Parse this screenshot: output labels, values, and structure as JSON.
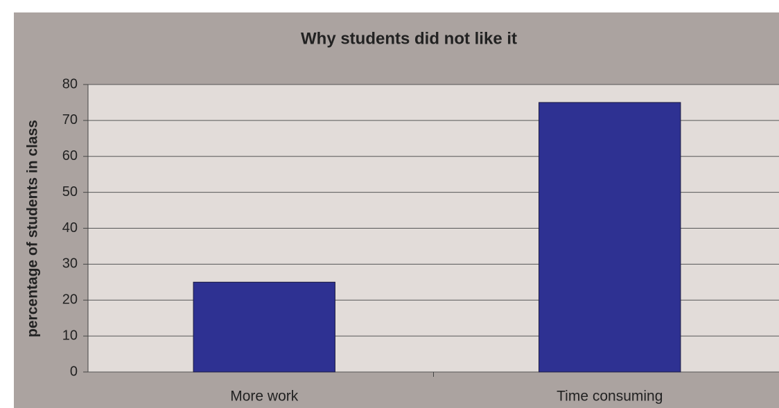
{
  "chart_data": {
    "type": "bar",
    "title": "Why students did not like it",
    "y_label": "percentage of students in class",
    "categories": [
      "More work",
      "Time consuming"
    ],
    "values": [
      25,
      75
    ],
    "color": "#2e3192",
    "ylim": [
      0,
      80
    ],
    "yticks": [
      0,
      10,
      20,
      30,
      40,
      50,
      60,
      70,
      80
    ],
    "grid": true
  }
}
